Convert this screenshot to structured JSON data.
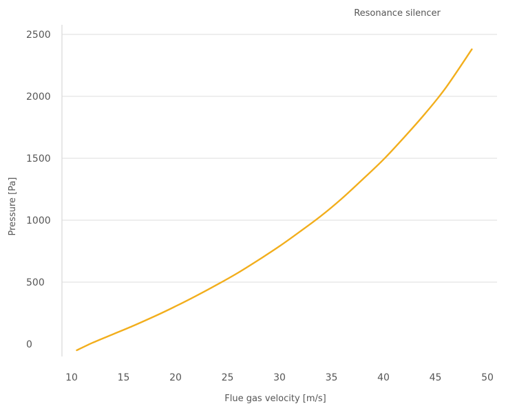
{
  "chart_data": {
    "type": "line",
    "title": "",
    "xlabel": "Flue gas velocity [m/s]",
    "ylabel": "Pressure [Pa]",
    "xlim": [
      10,
      50
    ],
    "ylim": [
      0,
      2500
    ],
    "x_ticks": [
      "10",
      "15",
      "20",
      "25",
      "30",
      "35",
      "40",
      "45",
      "50"
    ],
    "y_ticks": [
      "0",
      "500",
      "1000",
      "1500",
      "2000",
      "2500"
    ],
    "grid": "horizontal",
    "legend": "top-right",
    "series": [
      {
        "name": "Resonance silencer",
        "color": "#F2AE1C",
        "x": [
          10.5,
          12,
          14,
          16,
          18,
          20,
          22,
          24,
          26,
          28,
          30,
          32,
          34,
          36,
          38,
          40,
          42,
          44,
          46,
          48.5
        ],
        "y": [
          -50,
          10,
          80,
          150,
          225,
          305,
          390,
          480,
          575,
          680,
          790,
          910,
          1035,
          1175,
          1330,
          1490,
          1670,
          1860,
          2070,
          2380
        ]
      }
    ]
  }
}
